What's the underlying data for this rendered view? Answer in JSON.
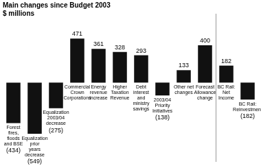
{
  "chart_data": {
    "type": "bar",
    "title": "Main changes since Budget 2003",
    "subtitle": "$ millions",
    "categories": [
      "Forest fires, floods and BSE",
      "Equalization prior years decrease",
      "Equalization 2003/04 decrease",
      "Commercial Crown Corporations",
      "Energy revenue increase",
      "Higher Taxation Revenue",
      "Debt interest and ministry savings",
      "2003/04 Priority Initiatives",
      "Other net changes",
      "Forecast Allowance change",
      "BC Rail: Net Income",
      "BC Rail: Reinvestment"
    ],
    "values": [
      -434,
      -549,
      -275,
      471,
      361,
      328,
      293,
      -138,
      133,
      400,
      182,
      -182
    ],
    "value_labels": [
      "(434)",
      "(549)",
      "(275)",
      "471",
      "361",
      "328",
      "293",
      "(138)",
      "133",
      "400",
      "182",
      "(182)"
    ],
    "color": "#111111",
    "ylim": [
      -850,
      650
    ],
    "grid": false,
    "data_labels": true,
    "tick_labels": "x"
  }
}
